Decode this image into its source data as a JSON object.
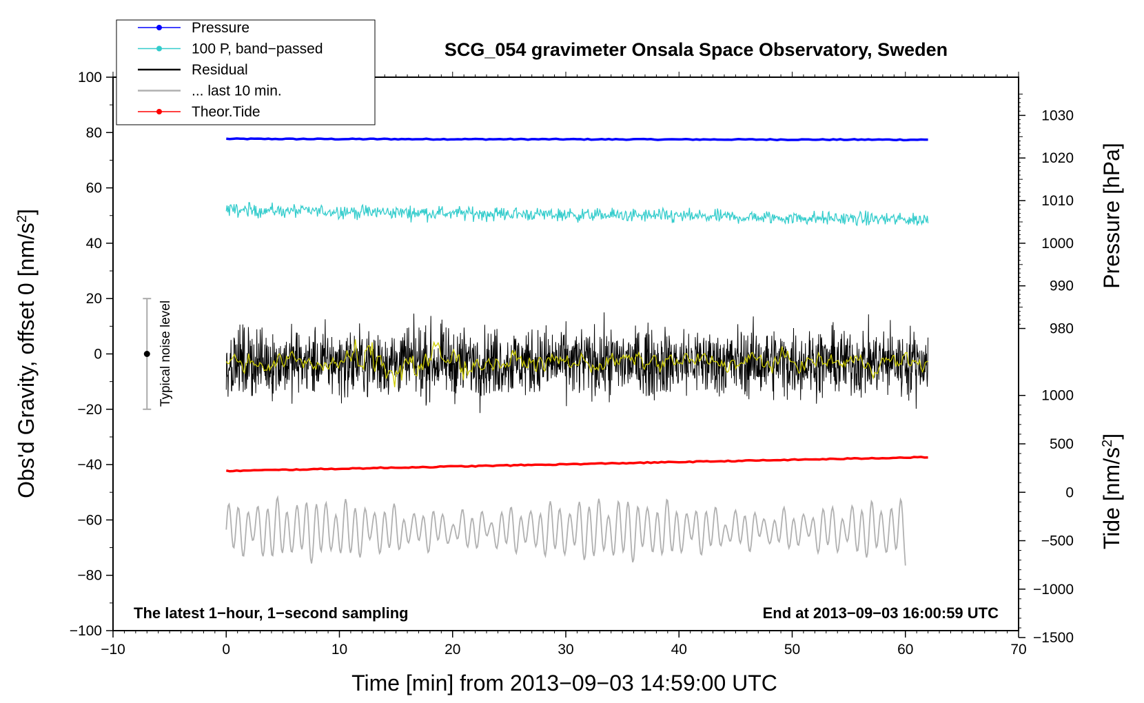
{
  "chart_data": {
    "type": "line",
    "title": "SCG_054 gravimeter Onsala Space Observatory, Sweden",
    "xlabel": "Time [min] from 2013−09−03 14:59:00 UTC",
    "ylabel_left": "Obs'd Gravity, offset 0 [nm/s²]",
    "ylabel_right_top": "Pressure [hPa]",
    "ylabel_right_bottom": "Tide [nm/s²]",
    "xlim": [
      -10,
      70
    ],
    "ylim": [
      -100,
      100
    ],
    "x_ticks": [
      "−10",
      "0",
      "10",
      "20",
      "30",
      "40",
      "50",
      "60",
      "70"
    ],
    "y_ticks_left": [
      "100",
      "80",
      "60",
      "40",
      "20",
      "0",
      "−20",
      "−40",
      "−60",
      "−80",
      "−100"
    ],
    "pressure_axis": {
      "ticks": [
        "1030",
        "1020",
        "1010",
        "1000",
        "990",
        "980"
      ],
      "values": [
        1030,
        1020,
        1010,
        1000,
        990,
        980
      ]
    },
    "tide_axis": {
      "ticks": [
        "1000",
        "500",
        "0",
        "−500",
        "−1000",
        "−1500"
      ],
      "values": [
        1000,
        500,
        0,
        -500,
        -1000,
        -1500
      ]
    },
    "grid": false,
    "legend_position": "top-left",
    "series": [
      {
        "name": "Pressure",
        "color": "#0000ff",
        "x": [
          0,
          62
        ],
        "values": [
          77.7,
          77.4
        ],
        "style": "thick-line"
      },
      {
        "name": "100 P, band−passed",
        "color": "#33cccc",
        "x": [
          0,
          62
        ],
        "values": [
          52,
          48.5
        ],
        "style": "noisy",
        "amplitude": 2.2
      },
      {
        "name": "Residual",
        "color": "#000000",
        "x": [
          0,
          62
        ],
        "values": [
          -3,
          -3
        ],
        "style": "noisy",
        "amplitude": 11
      },
      {
        "name": "",
        "color": "#cccc00",
        "x": [
          0,
          62
        ],
        "values": [
          -3,
          -3
        ],
        "style": "noisy",
        "amplitude": 1.5
      },
      {
        "name": "... last 10 min.",
        "color": "#b0b0b0",
        "x": [
          0,
          60
        ],
        "values": [
          -62,
          -76.5
        ],
        "style": "oscillating",
        "amplitude": 11
      },
      {
        "name": "Theor.Tide",
        "color": "#ff0000",
        "x": [
          0,
          62
        ],
        "values": [
          -42.3,
          -37.3
        ],
        "style": "thick-line"
      }
    ],
    "legend": [
      {
        "label": "Pressure",
        "color": "#0000ff",
        "marker": true
      },
      {
        "label": "100 P, band−passed",
        "color": "#33cccc",
        "marker": true
      },
      {
        "label": "Residual",
        "color": "#000000",
        "marker": false
      },
      {
        "label": "... last 10 min.",
        "color": "#b0b0b0",
        "marker": false
      },
      {
        "label": "Theor.Tide",
        "color": "#ff0000",
        "marker": true
      }
    ],
    "noise_bar": {
      "label": "Typical noise level",
      "x": -7,
      "y_low": -20,
      "y_high": 20
    },
    "footer_left": "The latest 1−hour, 1−second sampling",
    "footer_right": "End at 2013−09−03 16:00:59 UTC"
  }
}
